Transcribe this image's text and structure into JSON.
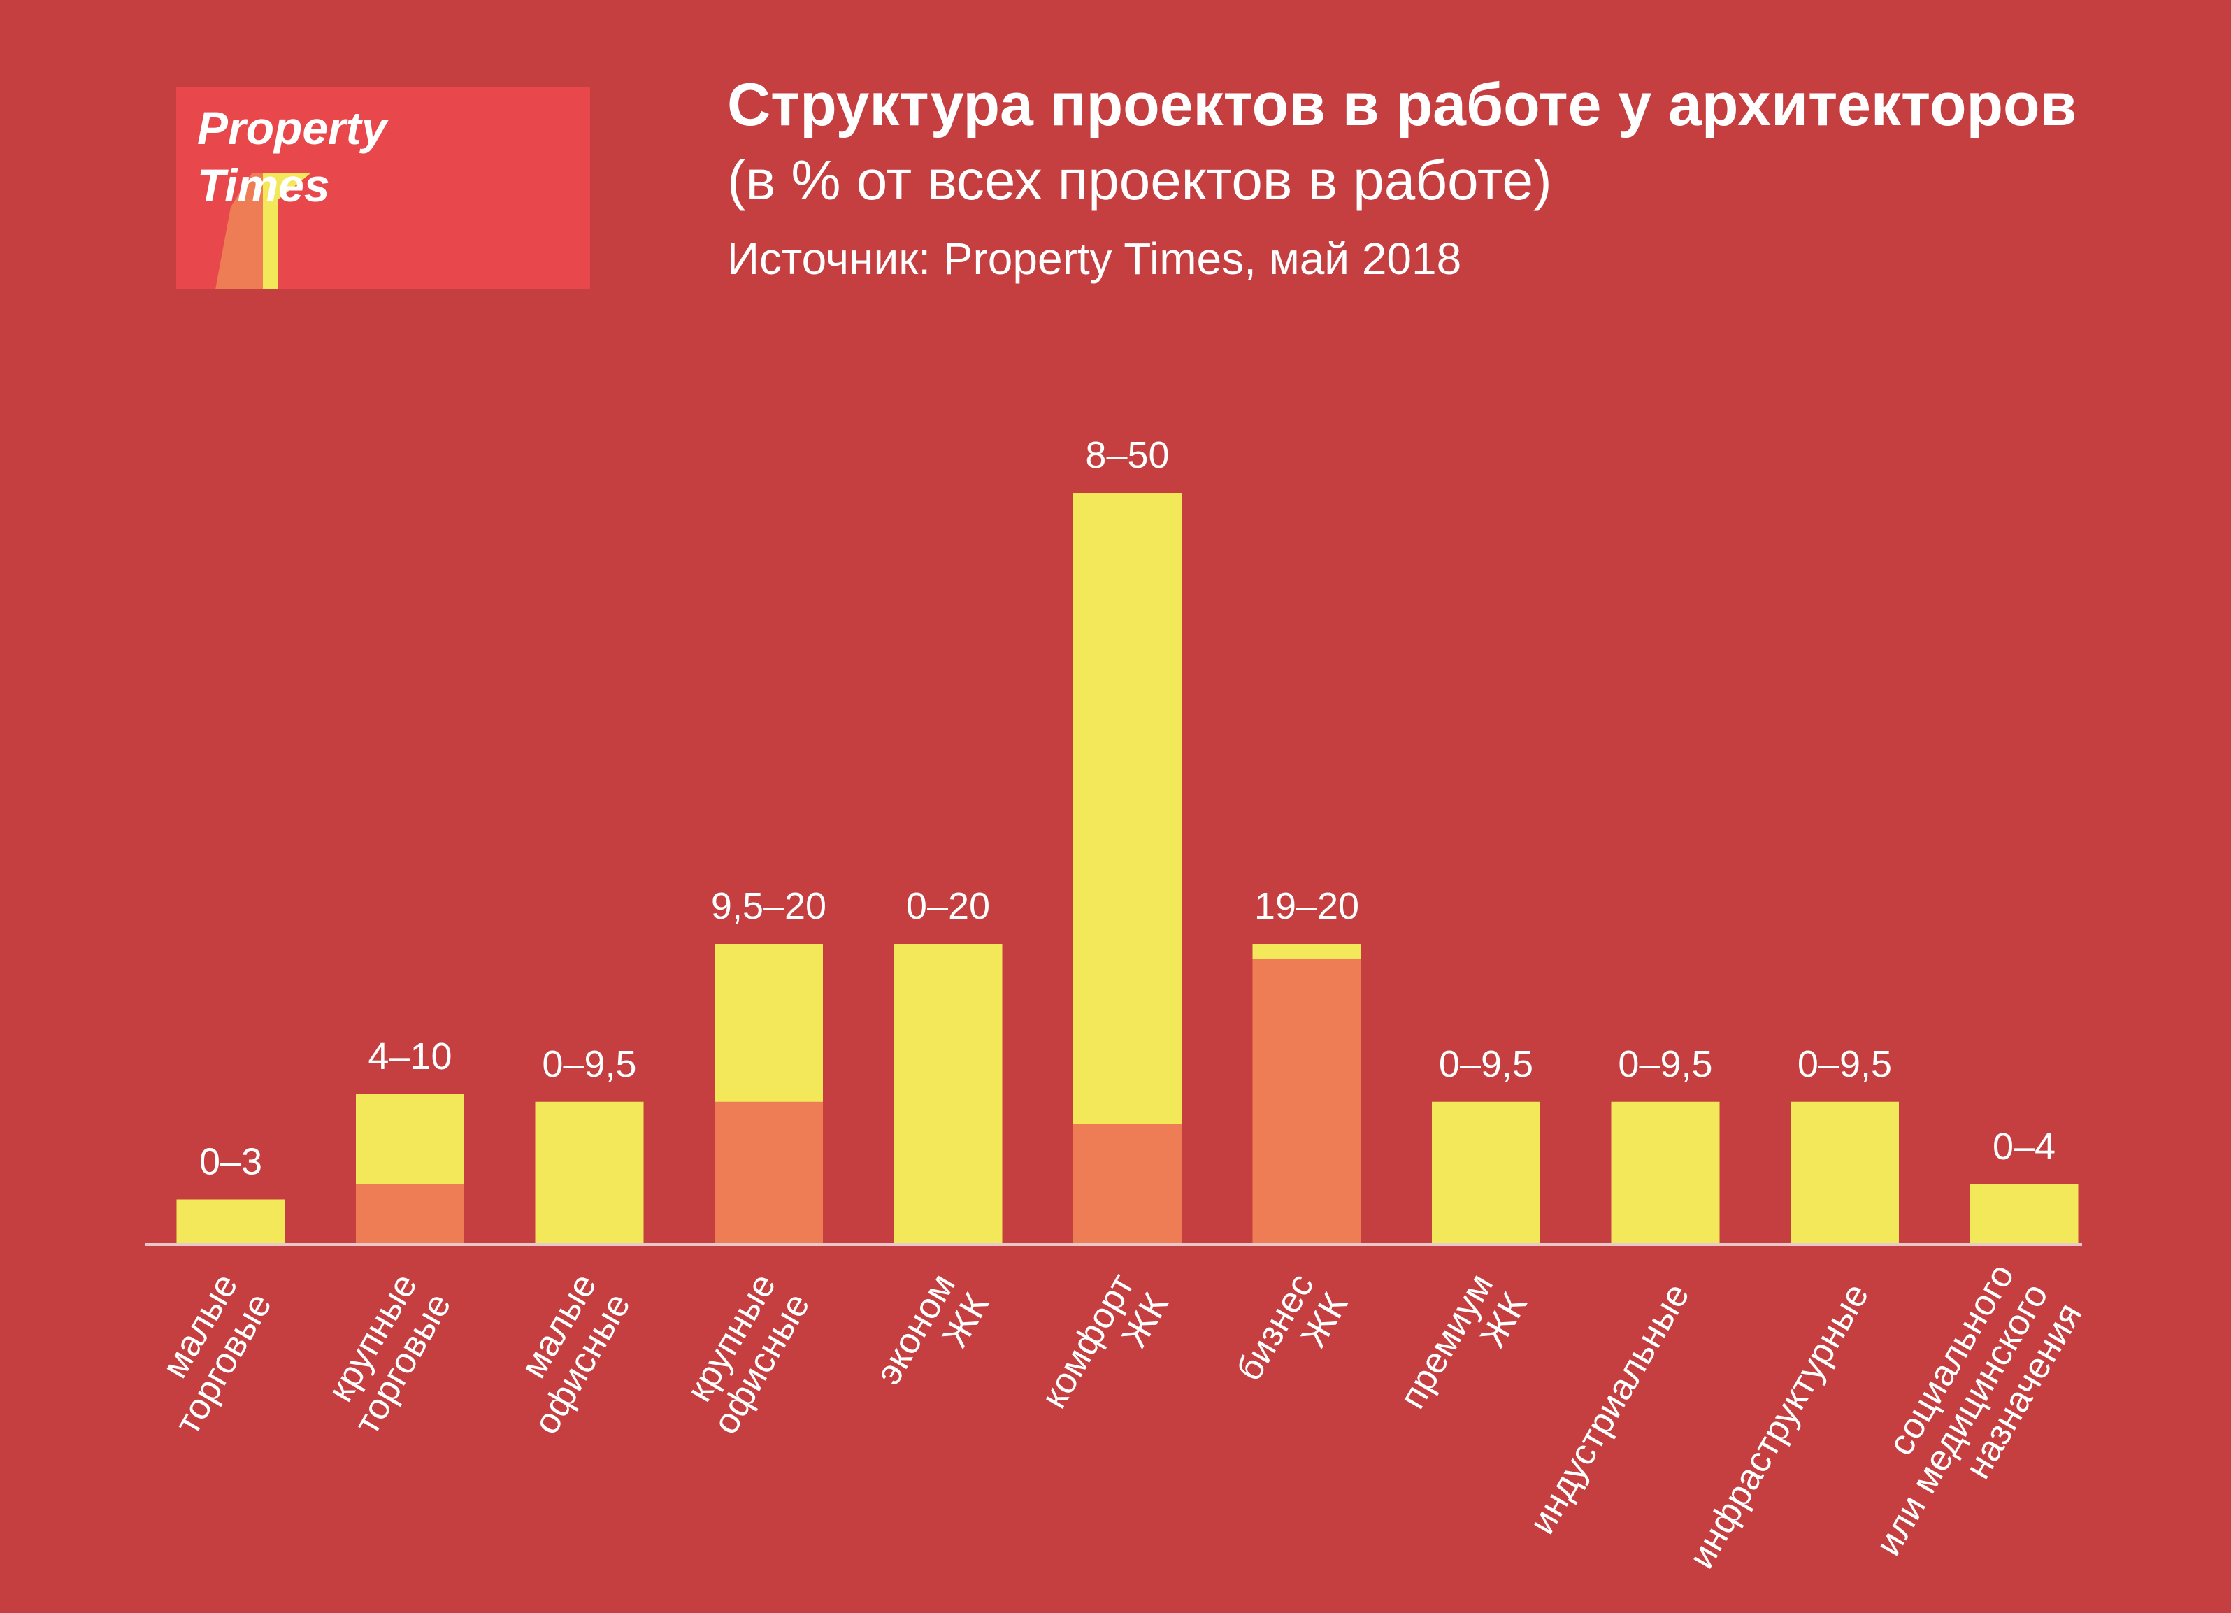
{
  "brand": {
    "logo_text": "Property\nTimes"
  },
  "colors": {
    "background": "#c53f41",
    "logo_bg": "#e8484b",
    "logo_accent": "#ee7d56",
    "logo_mark": "#f2e85a",
    "bar_max": "#f2e85a",
    "bar_min": "#ee7d56",
    "axis": "#e8c9c9",
    "text": "#ffffff"
  },
  "chart_data": {
    "type": "bar",
    "title": "Структура проектов в работе у архитекторов",
    "subtitle": "(в % от всех проектов в работе)",
    "source": "Источник: Property Times, май 2018",
    "ylim": [
      0,
      50
    ],
    "categories": [
      "малые\nторговые",
      "крупные\nторговые",
      "малые\nофисные",
      "крупные\nофисные",
      "эконом\nЖК",
      "комфорт\nЖК",
      "бизнес\nЖК",
      "премиум\nЖК",
      "индустриальные",
      "инфраструктурные",
      "социального\nили медицинского\nназначения"
    ],
    "series": [
      {
        "values": [
          0,
          4,
          0,
          9.5,
          0,
          8,
          19,
          0,
          0,
          0,
          0
        ]
      },
      {
        "values": [
          3,
          10,
          9.5,
          20,
          20,
          50,
          20,
          9.5,
          9.5,
          9.5,
          4
        ]
      }
    ],
    "data_labels": [
      "0–3",
      "4–10",
      "0–9,5",
      "9,5–20",
      "0–20",
      "8–50",
      "19–20",
      "0–9,5",
      "0–9,5",
      "0–9,5",
      "0–4"
    ]
  }
}
